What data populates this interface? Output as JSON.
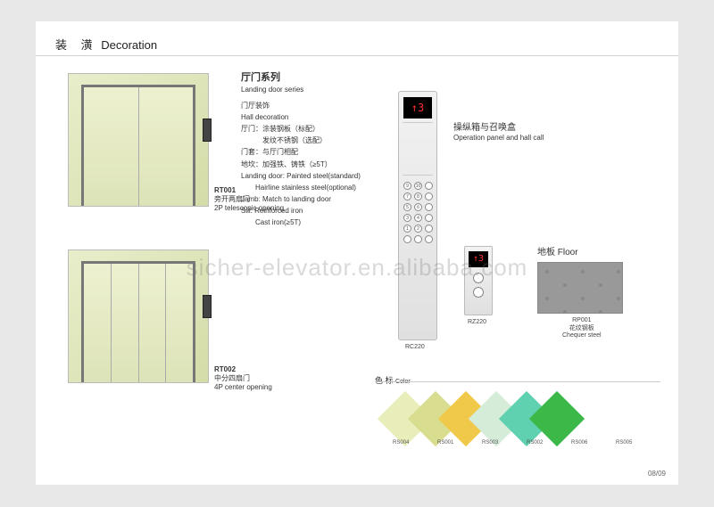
{
  "header": {
    "cn": "装 潢",
    "en": "Decoration"
  },
  "doors": {
    "d1": {
      "code": "RT001",
      "desc_cn": "旁开两扇门",
      "desc_en": "2P telescopic opening",
      "panels": 2
    },
    "d2": {
      "code": "RT002",
      "desc_cn": "中分四扇门",
      "desc_en": "4P center opening",
      "panels": 4
    }
  },
  "spec": {
    "h_cn": "厅门系列",
    "h_en": "Landing door series",
    "sub_cn": "门厅装饰",
    "sub_en": "Hall decoration",
    "lines": [
      "厅门：涂装钢板（标配）",
      "　　　发纹不锈钢（选配）",
      "门套：与厅门相配",
      "地坎：加强铁、铸铁（≥5T）",
      "Landing door: Painted steel(standard)",
      "　　Hairline stainless steel(optional)",
      "Jamb: Match to landing door",
      "Sill: Reinforced iron",
      "　　Cast iron(≥5T)"
    ]
  },
  "op": {
    "title_cn": "操纵箱与召唤盒",
    "title_en": "Operation panel and hall call",
    "cop_display": "↑3",
    "cop_code": "RC220",
    "hop_display": "↑3",
    "hop_code": "RZ220",
    "buttons": [
      "9",
      "10",
      "",
      "7",
      "8",
      "",
      "5",
      "6",
      "",
      "3",
      "4",
      "",
      "1",
      "2",
      "",
      "",
      "",
      ""
    ]
  },
  "floor": {
    "title_cn": "地板",
    "title_en": "Floor",
    "code": "RP001",
    "desc_cn": "花纹钢板",
    "desc_en": "Chequer steel"
  },
  "colors": {
    "title_cn": "色 标",
    "title_en": "Color",
    "items": [
      {
        "code": "RS004",
        "hex": "#e9edba"
      },
      {
        "code": "RS001",
        "hex": "#d9dd90"
      },
      {
        "code": "RS003",
        "hex": "#f0c94a"
      },
      {
        "code": "RS002",
        "hex": "#d5ecd9"
      },
      {
        "code": "RS006",
        "hex": "#5fd0b0"
      },
      {
        "code": "RS005",
        "hex": "#3cb848"
      }
    ]
  },
  "page_num": "08/09",
  "watermark": "sicher-elevator.en.alibaba.com"
}
